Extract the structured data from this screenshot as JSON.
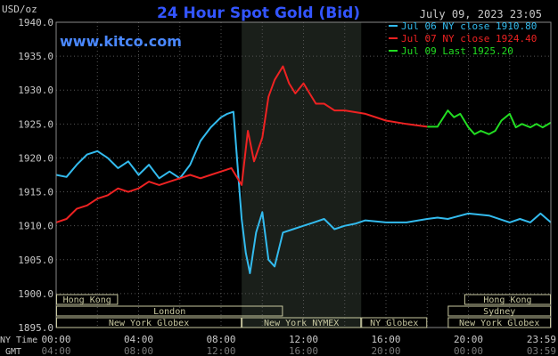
{
  "chart_data": {
    "type": "line",
    "title": "24 Hour Spot Gold (Bid)",
    "watermark": "www.kitco.com",
    "timestamp": "July 09, 2023 23:05",
    "ylabel": "USD/oz",
    "ylim": [
      1895.0,
      1940.0
    ],
    "yticks": [
      "1895.0",
      "1900.0",
      "1905.0",
      "1910.0",
      "1915.0",
      "1920.0",
      "1925.0",
      "1930.0",
      "1935.0",
      "1940.0"
    ],
    "xlim": [
      0,
      24
    ],
    "x_axis_ny": {
      "label": "NY Time",
      "ticks": [
        "00:00",
        "04:00",
        "08:00",
        "12:00",
        "16:00",
        "20:00",
        "23:59"
      ]
    },
    "x_axis_gmt": {
      "label": "GMT",
      "ticks": [
        "04:00",
        "08:00",
        "12:00",
        "16:00",
        "20:00",
        "00:00",
        "03:59"
      ]
    },
    "highlight_band": [
      9.0,
      14.8
    ],
    "grid": true,
    "legend_position": "top-right",
    "series": [
      {
        "name": "Jul 06 NY close 1910.80",
        "color": "#33bbee",
        "x": [
          0,
          0.5,
          1,
          1.5,
          2,
          2.5,
          3,
          3.5,
          4,
          4.5,
          5,
          5.5,
          6,
          6.5,
          7,
          7.5,
          8,
          8.3,
          8.6,
          9,
          9.2,
          9.4,
          9.7,
          10,
          10.3,
          10.6,
          11,
          11.5,
          12,
          12.5,
          13,
          13.5,
          14,
          14.5,
          15,
          16,
          17,
          18,
          18.5,
          19,
          20,
          21,
          22,
          22.5,
          23,
          23.5,
          24
        ],
        "y": [
          1917.5,
          1917.2,
          1919.0,
          1920.5,
          1921.0,
          1920.0,
          1918.5,
          1919.5,
          1917.5,
          1919.0,
          1917.0,
          1918.0,
          1917.0,
          1919.0,
          1922.5,
          1924.5,
          1926.0,
          1926.5,
          1926.8,
          1911.0,
          1906.0,
          1903.0,
          1909.0,
          1912.0,
          1905.0,
          1904.0,
          1909.0,
          1909.5,
          1910.0,
          1910.5,
          1911.0,
          1909.5,
          1910.0,
          1910.3,
          1910.8,
          1910.5,
          1910.5,
          1911.0,
          1911.2,
          1911.0,
          1911.8,
          1911.5,
          1910.5,
          1911.0,
          1910.5,
          1911.8,
          1910.5
        ]
      },
      {
        "name": "Jul 07 NY close 1924.40",
        "color": "#ee2222",
        "x": [
          0,
          0.5,
          1,
          1.5,
          2,
          2.5,
          3,
          3.5,
          4,
          4.5,
          5,
          5.5,
          6,
          6.5,
          7,
          7.5,
          8,
          8.5,
          9,
          9.3,
          9.6,
          10,
          10.3,
          10.6,
          11,
          11.3,
          11.6,
          12,
          12.3,
          12.6,
          13,
          13.5,
          14,
          15,
          16,
          17,
          18
        ],
        "y": [
          1910.5,
          1911.0,
          1912.5,
          1913.0,
          1914.0,
          1914.5,
          1915.5,
          1915.0,
          1915.5,
          1916.5,
          1916.0,
          1916.5,
          1917.0,
          1917.5,
          1917.0,
          1917.5,
          1918.0,
          1918.5,
          1916.0,
          1924.0,
          1919.5,
          1923.0,
          1929.0,
          1931.5,
          1933.5,
          1931.0,
          1929.5,
          1931.0,
          1929.5,
          1928.0,
          1928.0,
          1927.0,
          1927.0,
          1926.5,
          1925.5,
          1925.0,
          1924.6
        ]
      },
      {
        "name": "Jul 09 Last 1925.20",
        "color": "#22dd22",
        "x": [
          18,
          18.5,
          19,
          19.3,
          19.6,
          20,
          20.3,
          20.6,
          21,
          21.3,
          21.6,
          22,
          22.3,
          22.6,
          23,
          23.3,
          23.6,
          24
        ],
        "y": [
          1924.6,
          1924.6,
          1927.0,
          1926.0,
          1926.5,
          1924.5,
          1923.5,
          1924.0,
          1923.5,
          1924.0,
          1925.5,
          1926.5,
          1924.5,
          1925.0,
          1924.5,
          1925.0,
          1924.5,
          1925.2
        ]
      }
    ]
  },
  "sessions": [
    {
      "label": "Hong Kong",
      "row": 0,
      "start": 0.0,
      "end": 3.0
    },
    {
      "label": "Hong Kong",
      "row": 0,
      "start": 19.8,
      "end": 24.0
    },
    {
      "label": "London",
      "row": 1,
      "start": 0.0,
      "end": 11.0
    },
    {
      "label": "Sydney",
      "row": 1,
      "start": 19.0,
      "end": 24.0
    },
    {
      "label": "New York Globex",
      "row": 2,
      "start": 0.0,
      "end": 9.0
    },
    {
      "label": "New York NYMEX",
      "row": 2,
      "start": 9.0,
      "end": 14.8
    },
    {
      "label": "NY Globex",
      "row": 2,
      "start": 14.8,
      "end": 18.0
    },
    {
      "label": "New York Globex",
      "row": 2,
      "start": 19.0,
      "end": 24.0
    }
  ],
  "colors": {
    "background": "#000000",
    "plot_band": "#1a1f1a",
    "grid": "#555555",
    "title": "#3355ff",
    "watermark": "#4a88ff",
    "session_box": "#c8c8a0",
    "axis_text": "#c8c8c8"
  }
}
